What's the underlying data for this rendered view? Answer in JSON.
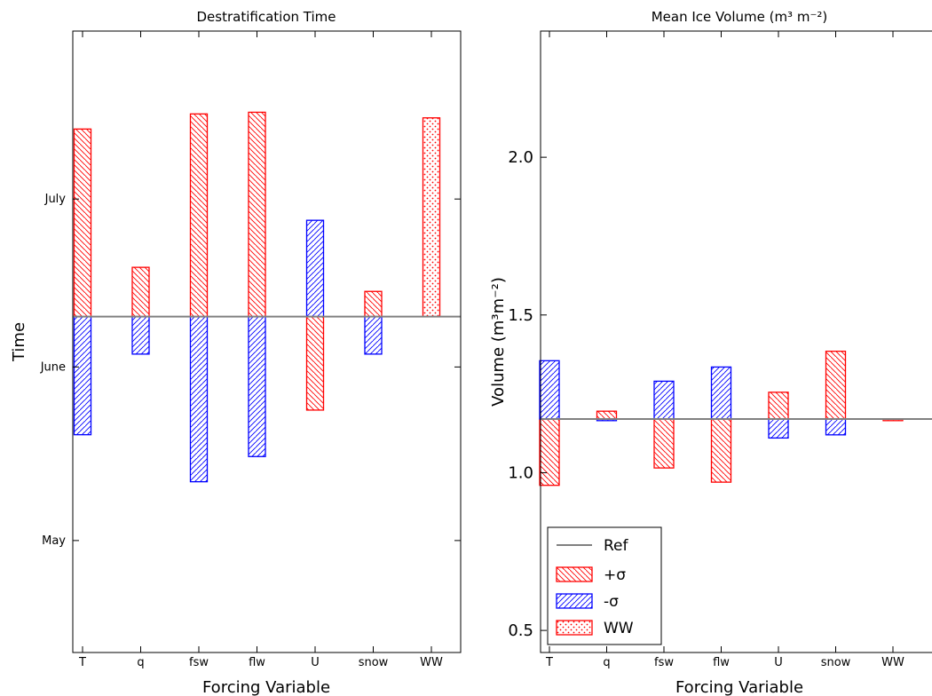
{
  "colors": {
    "plus": "#ff0000",
    "minus": "#0000ff",
    "ref": "#808080",
    "axes": "#000000"
  },
  "legend": {
    "ref": "Ref",
    "plus": "+σ",
    "minus": "-σ",
    "ww": "WW"
  },
  "chart_data": [
    {
      "type": "bar",
      "title": "Destratification Time",
      "xlabel": "Forcing Variable",
      "ylabel": "Time",
      "categories": [
        "T",
        "q",
        "fsw",
        "flw",
        "U",
        "snow",
        "WW"
      ],
      "reference_day": 161,
      "yticks": [
        {
          "label": "May",
          "day": 121
        },
        {
          "label": "June",
          "day": 152
        },
        {
          "label": "July",
          "day": 182
        }
      ],
      "ylim": [
        101,
        212
      ],
      "series": [
        {
          "name": "+σ",
          "values": [
            194.5,
            169.8,
            197.2,
            197.5,
            144.3,
            165.5,
            null
          ]
        },
        {
          "name": "-σ",
          "values": [
            139.9,
            154.3,
            131.5,
            136.0,
            178.2,
            154.3,
            null
          ]
        },
        {
          "name": "WW",
          "values": [
            null,
            null,
            null,
            null,
            null,
            null,
            196.5
          ]
        }
      ],
      "legend": "none",
      "grid": false
    },
    {
      "type": "bar",
      "title": "Mean Ice Volume (m³ m⁻²)",
      "xlabel": "Forcing Variable",
      "ylabel": "Volume (m³m⁻²)",
      "categories": [
        "T",
        "q",
        "fsw",
        "flw",
        "U",
        "snow",
        "WW"
      ],
      "reference_value": 1.17,
      "yticks": [
        0.5,
        1.0,
        1.5,
        2.0
      ],
      "ylim": [
        0.43,
        2.4
      ],
      "series": [
        {
          "name": "+σ",
          "values": [
            0.96,
            1.195,
            1.015,
            0.97,
            1.255,
            1.385,
            null
          ]
        },
        {
          "name": "-σ",
          "values": [
            1.355,
            1.165,
            1.29,
            1.335,
            1.11,
            1.12,
            null
          ]
        },
        {
          "name": "WW",
          "values": [
            null,
            null,
            null,
            null,
            null,
            null,
            1.165
          ]
        }
      ],
      "legend": "lower-left",
      "grid": false
    }
  ]
}
